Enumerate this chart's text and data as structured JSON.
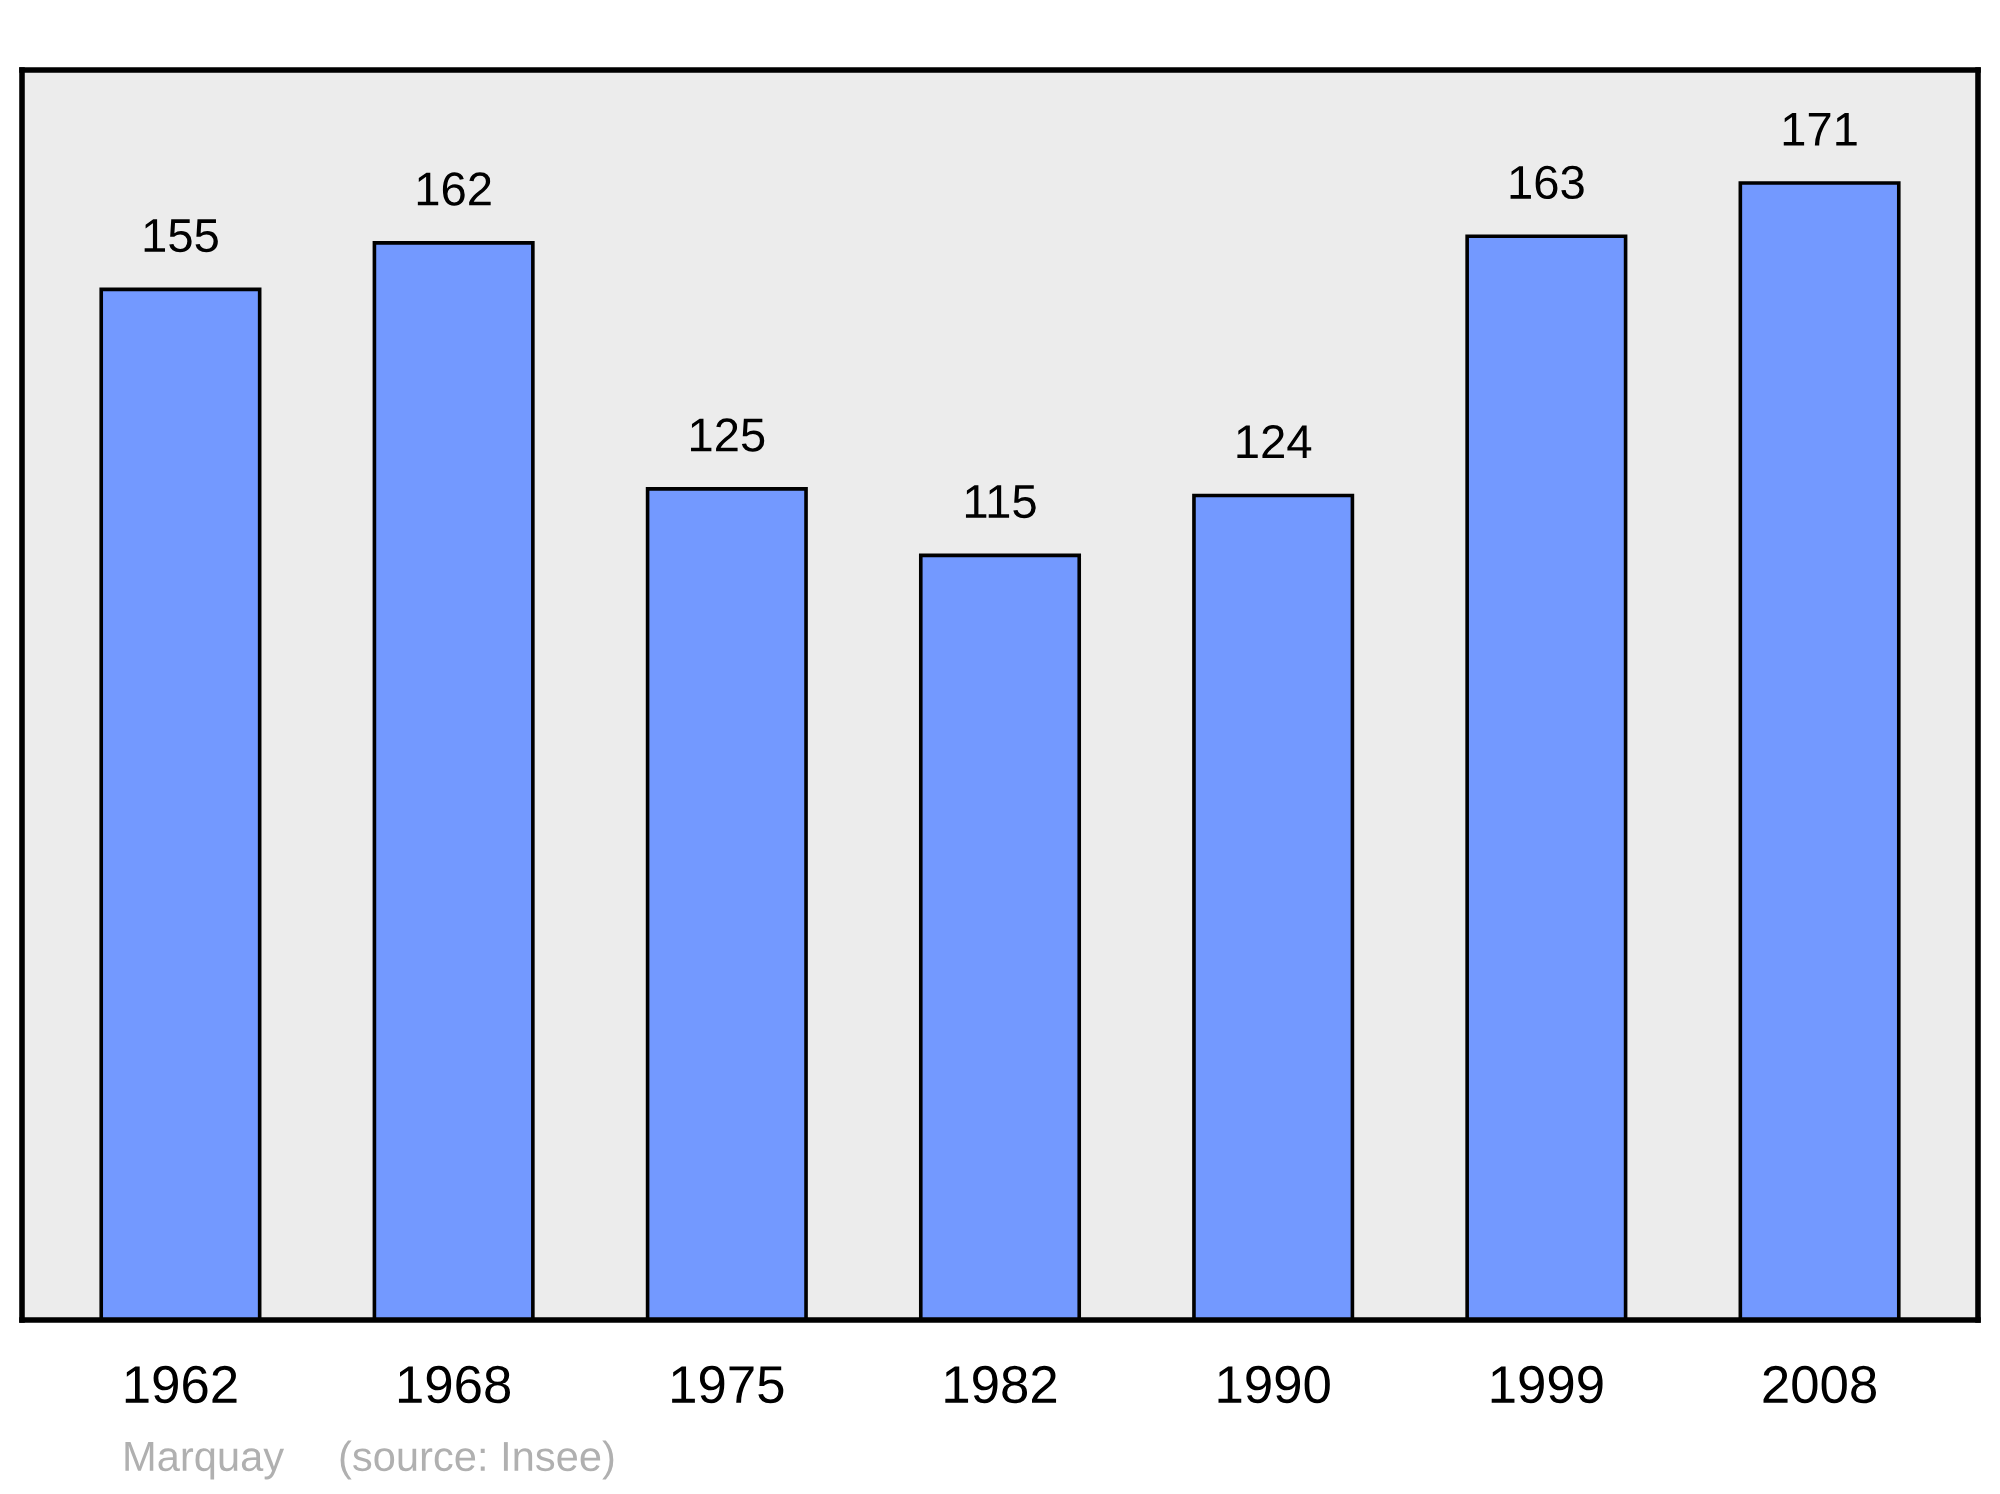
{
  "chart_data": {
    "type": "bar",
    "categories": [
      "1962",
      "1968",
      "1975",
      "1982",
      "1990",
      "1999",
      "2008"
    ],
    "values": [
      155,
      162,
      125,
      115,
      124,
      163,
      171
    ],
    "color": "#7399ff",
    "data_labels": true,
    "ylim": [
      0,
      188
    ],
    "tick_labels": "x",
    "grid": false,
    "annotations": [
      "Marquay",
      "(source: Insee)"
    ]
  }
}
